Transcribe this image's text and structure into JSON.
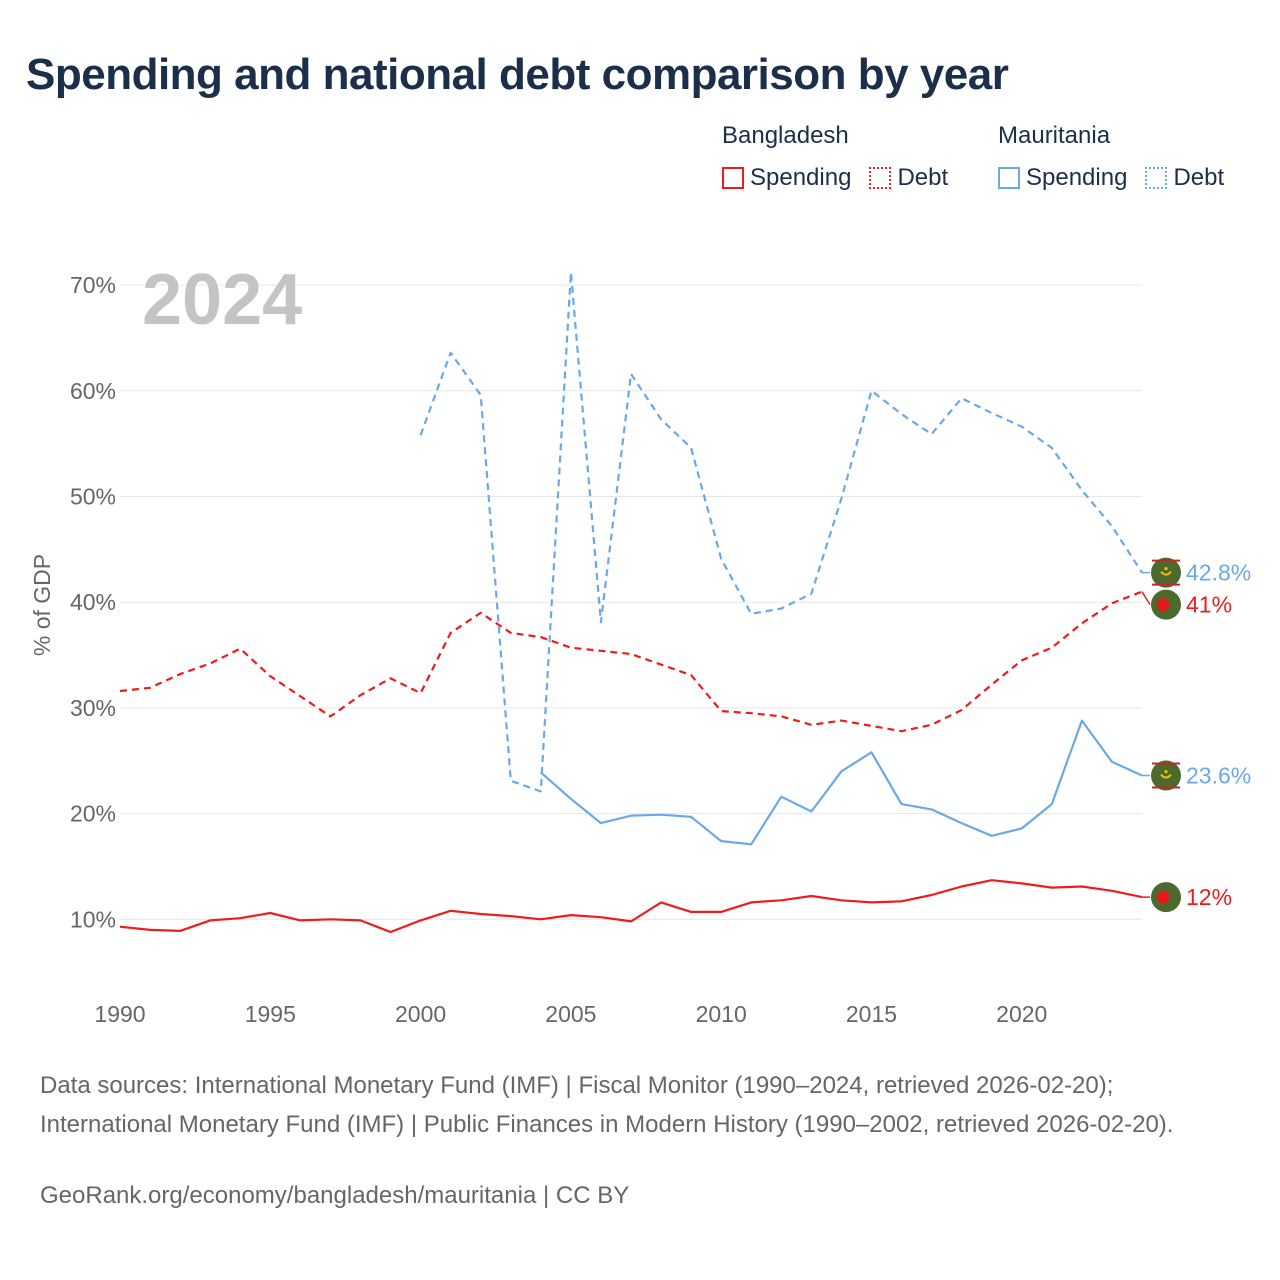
{
  "title": "Spending and national debt comparison by year",
  "legend": {
    "groups": [
      {
        "country": "Bangladesh",
        "items": [
          "Spending",
          "Debt"
        ]
      },
      {
        "country": "Mauritania",
        "items": [
          "Spending",
          "Debt"
        ]
      }
    ]
  },
  "colors": {
    "bangladesh": "#ee1c1c",
    "mauritania": "#6aa9e8",
    "grid": "#e6e6e6",
    "axis_text": "#666666",
    "year_label": "#c4c4c4",
    "flag_bg": "#4d6a2e"
  },
  "sources": "Data sources: International Monetary Fund (IMF) | Fiscal Monitor (1990–2024, retrieved 2026-02-20); International Monetary Fund (IMF) | Public Finances in Modern History (1990–2002, retrieved 2026-02-20).",
  "credit": "GeoRank.org/economy/bangladesh/mauritania | CC BY",
  "chart_data": {
    "type": "line",
    "title": "Spending and national debt comparison by year",
    "year_label": "2024",
    "xlabel": "",
    "ylabel": "% of GDP",
    "xlim": [
      1990,
      2024
    ],
    "ylim": [
      0,
      75
    ],
    "x_ticks": [
      1990,
      1995,
      2000,
      2005,
      2010,
      2015,
      2020
    ],
    "y_ticks": [
      10,
      20,
      30,
      40,
      50,
      60,
      70
    ],
    "y_tick_labels": [
      "10%",
      "20%",
      "30%",
      "40%",
      "50%",
      "60%",
      "70%"
    ],
    "grid": true,
    "series": [
      {
        "name": "Bangladesh Debt",
        "country": "bangladesh",
        "style": "dashed",
        "x": [
          1990,
          1991,
          1992,
          1993,
          1994,
          1995,
          1996,
          1997,
          1998,
          1999,
          2000,
          2001,
          2002,
          2003,
          2004,
          2005,
          2006,
          2007,
          2008,
          2009,
          2010,
          2011,
          2012,
          2013,
          2014,
          2015,
          2016,
          2017,
          2018,
          2019,
          2020,
          2021,
          2022,
          2023,
          2024
        ],
        "values": [
          31.6,
          31.9,
          33.2,
          34.2,
          35.6,
          33.0,
          31.1,
          29.2,
          31.2,
          32.8,
          31.4,
          37.1,
          39.0,
          37.1,
          36.7,
          35.7,
          35.4,
          35.1,
          34.1,
          33.1,
          29.7,
          29.5,
          29.2,
          28.4,
          28.8,
          28.3,
          27.8,
          28.4,
          29.8,
          32.2,
          34.5,
          35.7,
          38.0,
          39.9,
          41.0
        ],
        "end_label": "41%"
      },
      {
        "name": "Bangladesh Spending",
        "country": "bangladesh",
        "style": "solid",
        "x": [
          1990,
          1991,
          1992,
          1993,
          1994,
          1995,
          1996,
          1997,
          1998,
          1999,
          2000,
          2001,
          2002,
          2003,
          2004,
          2005,
          2006,
          2007,
          2008,
          2009,
          2010,
          2011,
          2012,
          2013,
          2014,
          2015,
          2016,
          2017,
          2018,
          2019,
          2020,
          2021,
          2022,
          2023,
          2024
        ],
        "values": [
          9.3,
          9.0,
          8.9,
          9.9,
          10.1,
          10.6,
          9.9,
          10.0,
          9.9,
          8.8,
          9.9,
          10.8,
          10.5,
          10.3,
          10.0,
          10.4,
          10.2,
          9.8,
          11.6,
          10.7,
          10.7,
          11.6,
          11.8,
          12.2,
          11.8,
          11.6,
          11.7,
          12.3,
          13.1,
          13.7,
          13.4,
          13.0,
          13.1,
          12.7,
          12.1
        ],
        "end_label": "12%"
      },
      {
        "name": "Mauritania Debt",
        "country": "mauritania",
        "style": "dashed",
        "x": [
          2000,
          2001,
          2002,
          2003,
          2004,
          2005,
          2006,
          2007,
          2008,
          2009,
          2010,
          2011,
          2012,
          2013,
          2014,
          2015,
          2016,
          2017,
          2018,
          2019,
          2020,
          2021,
          2022,
          2023,
          2024
        ],
        "values": [
          55.8,
          63.6,
          59.6,
          23.1,
          22.1,
          71.2,
          38.1,
          61.6,
          57.3,
          54.6,
          44.1,
          38.9,
          39.4,
          40.8,
          49.8,
          60.0,
          57.8,
          55.9,
          59.3,
          57.9,
          56.6,
          54.6,
          50.6,
          47.2,
          42.8
        ],
        "end_label": "42.8%"
      },
      {
        "name": "Mauritania Spending",
        "country": "mauritania",
        "style": "solid",
        "x": [
          2004,
          2005,
          2006,
          2007,
          2008,
          2009,
          2010,
          2011,
          2012,
          2013,
          2014,
          2015,
          2016,
          2017,
          2018,
          2019,
          2020,
          2021,
          2022,
          2023,
          2024
        ],
        "values": [
          23.9,
          21.4,
          19.1,
          19.8,
          19.9,
          19.7,
          17.4,
          17.1,
          21.6,
          20.2,
          24.0,
          25.8,
          20.9,
          20.4,
          19.1,
          17.9,
          18.6,
          20.9,
          28.8,
          24.9,
          23.6
        ],
        "end_label": "23.6%"
      }
    ]
  }
}
